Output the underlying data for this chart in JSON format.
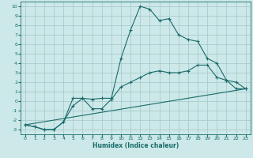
{
  "title": "",
  "xlabel": "Humidex (Indice chaleur)",
  "bg_color": "#cce8e8",
  "grid_color": "#aacccc",
  "line_color": "#1a6b6b",
  "xlim": [
    -0.5,
    23.5
  ],
  "ylim": [
    -3.5,
    10.5
  ],
  "xticks": [
    0,
    1,
    2,
    3,
    4,
    5,
    6,
    7,
    8,
    9,
    10,
    11,
    12,
    13,
    14,
    15,
    16,
    17,
    18,
    19,
    20,
    21,
    22,
    23
  ],
  "yticks": [
    -3,
    -2,
    -1,
    0,
    1,
    2,
    3,
    4,
    5,
    6,
    7,
    8,
    9,
    10
  ],
  "line1_x": [
    0,
    1,
    2,
    3,
    4,
    5,
    6,
    7,
    8,
    9,
    10,
    11,
    12,
    13,
    14,
    15,
    16,
    17,
    18,
    19,
    20,
    21,
    22,
    23
  ],
  "line1_y": [
    -2.5,
    -2.7,
    -3.0,
    -3.0,
    -2.2,
    0.3,
    0.3,
    0.2,
    0.3,
    0.3,
    4.5,
    7.5,
    10.0,
    9.7,
    8.5,
    8.7,
    7.0,
    6.5,
    6.3,
    4.5,
    4.0,
    2.2,
    2.0,
    1.3
  ],
  "line2_x": [
    0,
    1,
    2,
    3,
    4,
    5,
    6,
    7,
    8,
    9,
    10,
    11,
    12,
    13,
    14,
    15,
    16,
    17,
    18,
    19,
    20,
    21,
    22,
    23
  ],
  "line2_y": [
    -2.5,
    -2.7,
    -3.0,
    -3.0,
    -2.2,
    -0.5,
    0.3,
    -0.8,
    -0.8,
    0.2,
    1.5,
    2.0,
    2.5,
    3.0,
    3.2,
    3.0,
    3.0,
    3.2,
    3.8,
    3.8,
    2.5,
    2.2,
    1.3,
    1.3
  ],
  "line3_x": [
    0,
    23
  ],
  "line3_y": [
    -2.5,
    1.3
  ]
}
